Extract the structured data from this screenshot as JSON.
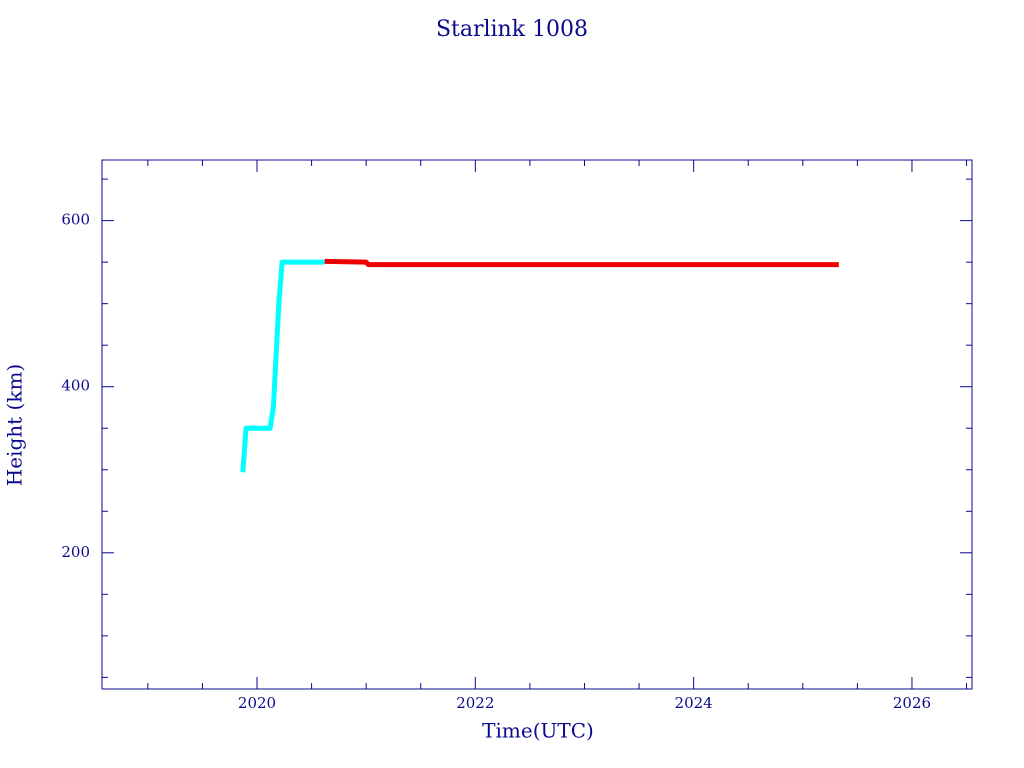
{
  "chart_data": {
    "type": "line",
    "title": "Starlink 1008",
    "xlabel": "Time(UTC)",
    "ylabel": "Height (km)",
    "axis_color": "#0a0a8c",
    "xlim": [
      2018.58,
      2026.55
    ],
    "ylim": [
      36,
      673
    ],
    "xticks": [
      2020,
      2022,
      2024,
      2026
    ],
    "xminorticks": [
      2019,
      2019.5,
      2020.5,
      2021,
      2021.5,
      2022.5,
      2023,
      2023.5,
      2024.5,
      2025,
      2025.5,
      2026.5
    ],
    "yticks": [
      200,
      400,
      600
    ],
    "yminorticks": [
      50,
      100,
      150,
      250,
      300,
      350,
      450,
      500,
      550,
      650
    ],
    "series": [
      {
        "color": "#00ffff",
        "x": [
          2019.87,
          2019.9,
          2020.12,
          2020.15,
          2020.2,
          2020.23,
          2020.62
        ],
        "values": [
          297,
          350,
          350,
          375,
          500,
          550,
          550
        ]
      },
      {
        "color": "#ee0000",
        "x": [
          2020.62,
          2021.0,
          2021.02,
          2025.33
        ],
        "values": [
          551,
          550,
          547,
          547
        ]
      }
    ]
  }
}
